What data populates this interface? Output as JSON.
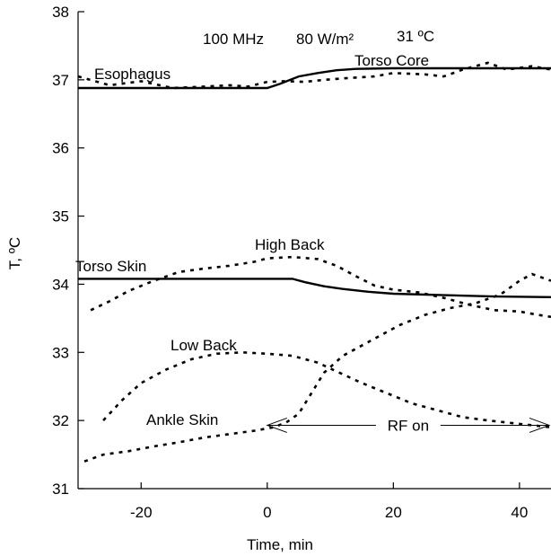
{
  "chart_data": {
    "type": "line",
    "title": "",
    "xlabel": "Time, min",
    "ylabel": "T, ºC",
    "xlim": [
      -30,
      45
    ],
    "ylim": [
      31,
      38
    ],
    "xticks": [
      -20,
      0,
      20,
      40
    ],
    "yticks": [
      31,
      32,
      33,
      34,
      35,
      36,
      37,
      38
    ],
    "grid": false,
    "series": [
      {
        "name": "Torso Core",
        "style": "solid",
        "points": [
          [
            -30,
            36.88
          ],
          [
            0,
            36.88
          ],
          [
            2,
            36.94
          ],
          [
            5,
            37.05
          ],
          [
            8,
            37.1
          ],
          [
            11,
            37.14
          ],
          [
            14,
            37.16
          ],
          [
            20,
            37.17
          ],
          [
            30,
            37.17
          ],
          [
            45,
            37.17
          ]
        ]
      },
      {
        "name": "Esophagus",
        "style": "dashed",
        "points": [
          [
            -30,
            37.05
          ],
          [
            -25,
            36.92
          ],
          [
            -20,
            36.98
          ],
          [
            -15,
            36.88
          ],
          [
            -10,
            36.9
          ],
          [
            -6,
            36.92
          ],
          [
            -3,
            36.9
          ],
          [
            0,
            36.97
          ],
          [
            3,
            36.98
          ],
          [
            6,
            36.97
          ],
          [
            9,
            37.0
          ],
          [
            12,
            37.02
          ],
          [
            17,
            37.05
          ],
          [
            20,
            37.1
          ],
          [
            25,
            37.08
          ],
          [
            28,
            37.05
          ],
          [
            31,
            37.15
          ],
          [
            35,
            37.25
          ],
          [
            38,
            37.15
          ],
          [
            42,
            37.2
          ],
          [
            45,
            37.15
          ]
        ]
      },
      {
        "name": "Torso Skin",
        "style": "solid",
        "points": [
          [
            -30,
            34.08
          ],
          [
            4,
            34.08
          ],
          [
            6,
            34.03
          ],
          [
            9,
            33.97
          ],
          [
            12,
            33.93
          ],
          [
            16,
            33.89
          ],
          [
            20,
            33.86
          ],
          [
            28,
            33.84
          ],
          [
            36,
            33.82
          ],
          [
            45,
            33.81
          ]
        ]
      },
      {
        "name": "High Back",
        "style": "dashed",
        "points": [
          [
            -28,
            33.62
          ],
          [
            -25,
            33.75
          ],
          [
            -22,
            33.9
          ],
          [
            -18,
            34.05
          ],
          [
            -14,
            34.18
          ],
          [
            -10,
            34.23
          ],
          [
            -6,
            34.27
          ],
          [
            -2,
            34.33
          ],
          [
            0,
            34.38
          ],
          [
            4,
            34.4
          ],
          [
            8,
            34.37
          ],
          [
            11,
            34.27
          ],
          [
            14,
            34.12
          ],
          [
            17,
            33.98
          ],
          [
            20,
            33.92
          ],
          [
            24,
            33.88
          ],
          [
            28,
            33.8
          ],
          [
            32,
            33.7
          ],
          [
            36,
            33.62
          ],
          [
            40,
            33.6
          ],
          [
            43,
            33.55
          ],
          [
            45,
            33.52
          ]
        ]
      },
      {
        "name": "Low Back",
        "style": "dashed",
        "points": [
          [
            -26,
            32.0
          ],
          [
            -23,
            32.3
          ],
          [
            -20,
            32.55
          ],
          [
            -16,
            32.75
          ],
          [
            -12,
            32.9
          ],
          [
            -8,
            32.98
          ],
          [
            -4,
            33.0
          ],
          [
            0,
            32.98
          ],
          [
            4,
            32.95
          ],
          [
            8,
            32.85
          ],
          [
            11,
            32.72
          ],
          [
            15,
            32.55
          ],
          [
            19,
            32.4
          ],
          [
            23,
            32.25
          ],
          [
            27,
            32.15
          ],
          [
            31,
            32.05
          ],
          [
            35,
            32.0
          ],
          [
            40,
            31.95
          ],
          [
            45,
            31.9
          ]
        ]
      },
      {
        "name": "Ankle Skin",
        "style": "dashed",
        "points": [
          [
            -29,
            31.4
          ],
          [
            -26,
            31.5
          ],
          [
            -22,
            31.55
          ],
          [
            -18,
            31.62
          ],
          [
            -14,
            31.68
          ],
          [
            -10,
            31.75
          ],
          [
            -6,
            31.8
          ],
          [
            -2,
            31.85
          ],
          [
            1,
            31.9
          ],
          [
            3,
            31.97
          ],
          [
            5,
            32.1
          ],
          [
            7,
            32.4
          ],
          [
            9,
            32.7
          ],
          [
            12,
            32.95
          ],
          [
            15,
            33.1
          ],
          [
            18,
            33.25
          ],
          [
            21,
            33.4
          ],
          [
            25,
            33.55
          ],
          [
            29,
            33.65
          ],
          [
            33,
            33.72
          ],
          [
            37,
            33.85
          ],
          [
            40,
            34.05
          ],
          [
            42,
            34.15
          ],
          [
            45,
            34.05
          ]
        ]
      }
    ],
    "annotations": {
      "conditions": [
        "100 MHz",
        "80 W/m²",
        "31 ºC"
      ],
      "labels": [
        "Esophagus",
        "Torso Core",
        "Torso Skin",
        "High Back",
        "Low Back",
        "Ankle Skin"
      ],
      "rf_label": "RF on",
      "rf_span": [
        0,
        45
      ],
      "rf_y": 31.93
    }
  }
}
